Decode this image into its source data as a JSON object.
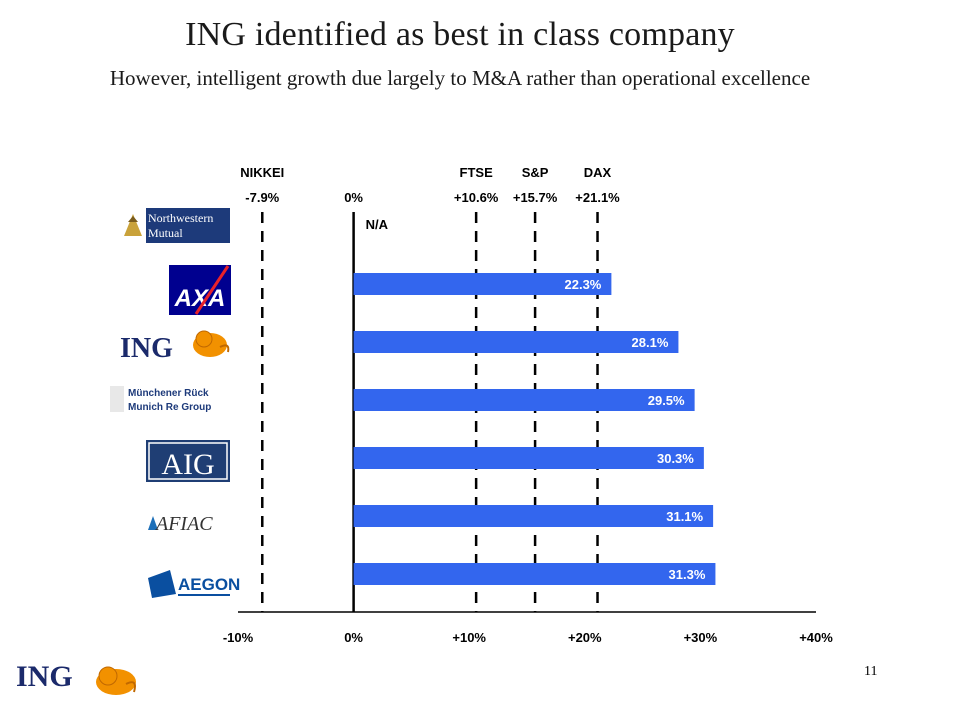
{
  "slide": {
    "title": "ING identified as best in class company",
    "subtitle": "However, intelligent growth due largely to M&A rather than operational excellence",
    "page_number": "11",
    "footer_logo_text": "ING"
  },
  "colors": {
    "bar": "#3366ee",
    "ing_orange": "#f29100",
    "ing_navy": "#1b2a6b",
    "aig_navy": "#1f3e74",
    "aegon_blue": "#0a4fa0",
    "nw_navy": "#1d3a7a"
  },
  "chart_data": {
    "type": "bar",
    "orientation": "horizontal",
    "categories": [
      "Northwestern Mutual",
      "AXA",
      "ING",
      "Münchener Rück Munich Re Group",
      "AIG",
      "AFLAC",
      "AEGON"
    ],
    "values": [
      null,
      22.3,
      28.1,
      29.5,
      30.3,
      31.1,
      31.3
    ],
    "value_labels": [
      "N/A",
      "22.3%",
      "28.1%",
      "29.5%",
      "30.3%",
      "31.1%",
      "31.3%"
    ],
    "xlim": [
      -10,
      40
    ],
    "x_ticks": [
      -10,
      0,
      10,
      20,
      30,
      40
    ],
    "x_tick_labels": [
      "-10%",
      "0%",
      "+10%",
      "+20%",
      "+30%",
      "+40%"
    ],
    "reference_lines": [
      {
        "name": "NIKKEI",
        "value": -7.9,
        "label": "-7.9%",
        "dashed": true
      },
      {
        "name": "",
        "value": 0,
        "label": "0%",
        "dashed": false
      },
      {
        "name": "FTSE",
        "value": 10.6,
        "label": "+10.6%",
        "dashed": true
      },
      {
        "name": "S&P",
        "value": 15.7,
        "label": "+15.7%",
        "dashed": true
      },
      {
        "name": "DAX",
        "value": 21.1,
        "label": "+21.1%",
        "dashed": true
      }
    ],
    "grid": false,
    "legend": "none"
  },
  "logos": {
    "northwestern": {
      "line1": "Northwestern",
      "line2": "Mutual"
    },
    "axa": {
      "text": "AXA"
    },
    "ing": {
      "text": "ING"
    },
    "munich_re": {
      "line1": "Münchener Rück",
      "line2": "Munich Re Group"
    },
    "aig": {
      "text": "AIG"
    },
    "aflac": {
      "text": "AFIAC"
    },
    "aegon": {
      "text": "AEGON"
    }
  }
}
